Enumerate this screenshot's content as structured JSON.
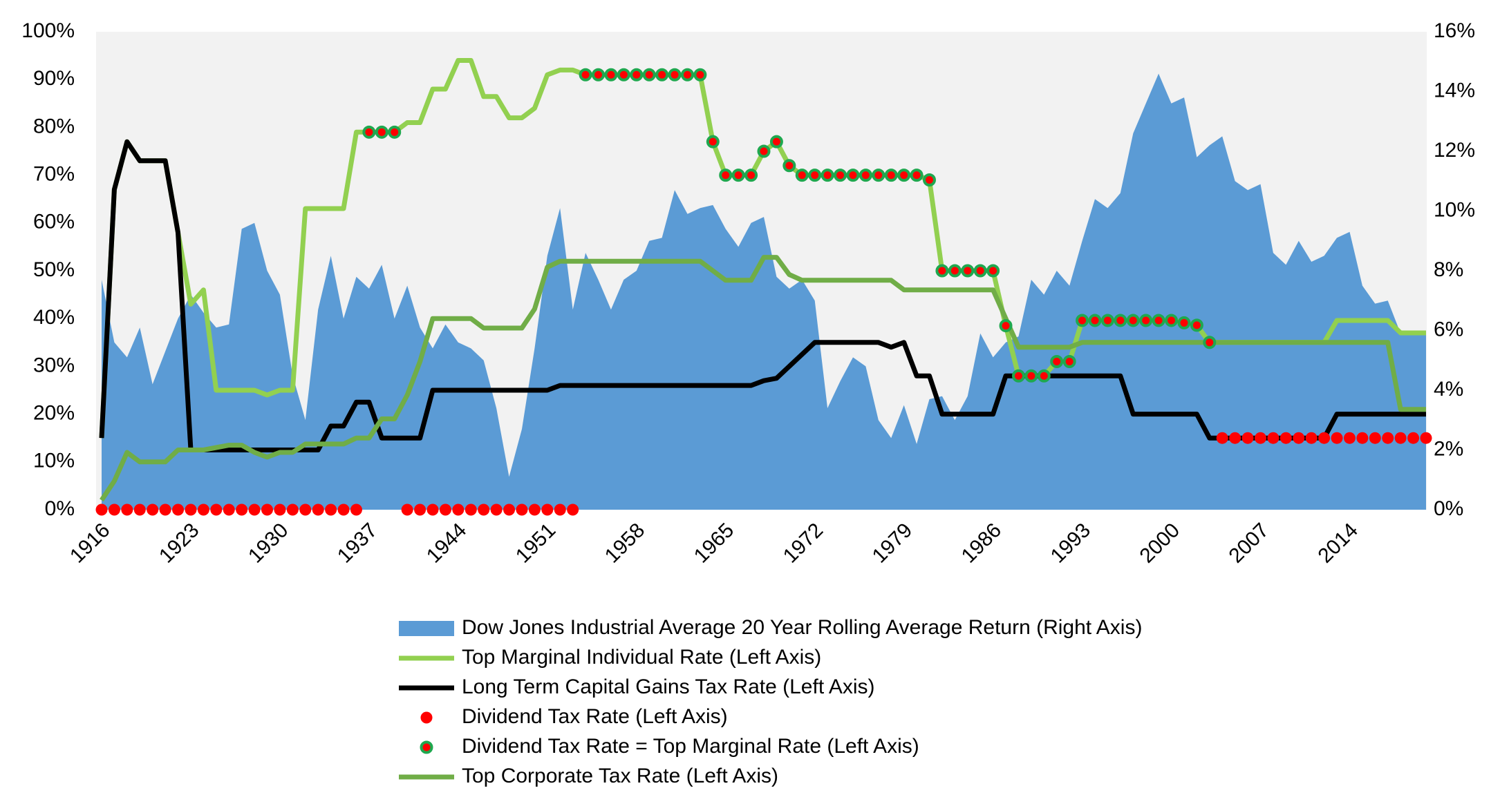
{
  "chart_data": {
    "type": "line",
    "x": [
      1916,
      1917,
      1918,
      1919,
      1920,
      1921,
      1922,
      1923,
      1924,
      1925,
      1926,
      1927,
      1928,
      1929,
      1930,
      1931,
      1932,
      1933,
      1934,
      1935,
      1936,
      1937,
      1938,
      1939,
      1940,
      1941,
      1942,
      1943,
      1944,
      1945,
      1946,
      1947,
      1948,
      1949,
      1950,
      1951,
      1952,
      1953,
      1954,
      1955,
      1956,
      1957,
      1958,
      1959,
      1960,
      1961,
      1962,
      1963,
      1964,
      1965,
      1966,
      1967,
      1968,
      1969,
      1970,
      1971,
      1972,
      1973,
      1974,
      1975,
      1976,
      1977,
      1978,
      1979,
      1980,
      1981,
      1982,
      1983,
      1984,
      1985,
      1986,
      1987,
      1988,
      1989,
      1990,
      1991,
      1992,
      1993,
      1994,
      1995,
      1996,
      1997,
      1998,
      1999,
      2000,
      2001,
      2002,
      2003,
      2004,
      2005,
      2006,
      2007,
      2008,
      2009,
      2010,
      2011,
      2012,
      2013,
      2014,
      2015,
      2016,
      2017,
      2018,
      2019,
      2020
    ],
    "xlim": [
      1916,
      2020
    ],
    "xticks": [
      1916,
      1923,
      1930,
      1937,
      1944,
      1951,
      1958,
      1965,
      1972,
      1979,
      1986,
      1993,
      2000,
      2007,
      2014
    ],
    "ylim": [
      0,
      100
    ],
    "yticks": [
      {
        "value": 0,
        "label": "0%"
      },
      {
        "value": 10,
        "label": "10%"
      },
      {
        "value": 20,
        "label": "20%"
      },
      {
        "value": 30,
        "label": "30%"
      },
      {
        "value": 40,
        "label": "40%"
      },
      {
        "value": 50,
        "label": "50%"
      },
      {
        "value": 60,
        "label": "60%"
      },
      {
        "value": 70,
        "label": "70%"
      },
      {
        "value": 80,
        "label": "80%"
      },
      {
        "value": 90,
        "label": "90%"
      },
      {
        "value": 100,
        "label": "100%"
      }
    ],
    "y2lim": [
      0,
      16
    ],
    "y2ticks": [
      {
        "value": 0,
        "label": "0%"
      },
      {
        "value": 2,
        "label": "2%"
      },
      {
        "value": 4,
        "label": "4%"
      },
      {
        "value": 6,
        "label": "6%"
      },
      {
        "value": 8,
        "label": "8%"
      },
      {
        "value": 10,
        "label": "10%"
      },
      {
        "value": 12,
        "label": "12%"
      },
      {
        "value": 14,
        "label": "14%"
      },
      {
        "value": 16,
        "label": "16%"
      }
    ],
    "grid": false,
    "legend": "bottom",
    "series": [
      {
        "name": "Dow Jones Industrial Average 20 Year Rolling Average Return (Right Axis)",
        "style": "area",
        "axis": "y2",
        "color": "#5b9bd5",
        "values": [
          7.7,
          5.6,
          5.1,
          6.1,
          4.2,
          5.3,
          6.4,
          7.2,
          6.6,
          6.1,
          6.2,
          9.4,
          9.6,
          8.0,
          7.2,
          4.5,
          3.0,
          6.7,
          8.5,
          6.4,
          7.8,
          7.4,
          8.2,
          6.4,
          7.5,
          6.1,
          5.4,
          6.2,
          5.6,
          5.4,
          5.0,
          3.4,
          1.1,
          2.7,
          5.4,
          8.5,
          10.1,
          6.7,
          8.6,
          7.7,
          6.7,
          7.7,
          8.0,
          9.0,
          9.1,
          10.7,
          9.9,
          10.1,
          10.2,
          9.4,
          8.8,
          9.6,
          9.8,
          7.8,
          7.4,
          7.7,
          7.0,
          3.4,
          4.3,
          5.1,
          4.8,
          3.0,
          2.4,
          3.5,
          2.2,
          3.7,
          3.8,
          3.0,
          3.8,
          5.9,
          5.1,
          5.6,
          5.8,
          7.7,
          7.2,
          8.0,
          7.5,
          9.0,
          10.4,
          10.1,
          10.6,
          12.6,
          13.6,
          14.6,
          13.6,
          13.8,
          11.8,
          12.2,
          12.5,
          11.0,
          10.7,
          10.9,
          8.6,
          8.2,
          9.0,
          8.3,
          8.5,
          9.1,
          9.3,
          7.5,
          6.9,
          7.0,
          5.9,
          5.9,
          5.9
        ]
      },
      {
        "name": "Top Marginal Individual Rate (Left Axis)",
        "style": "line",
        "color": "#92d050",
        "values": [
          15,
          67,
          77,
          73,
          73,
          73,
          58,
          43,
          46,
          25,
          25,
          25,
          25,
          24,
          25,
          25,
          63,
          63,
          63,
          63,
          79,
          79,
          79,
          79,
          81,
          81,
          88,
          88,
          94,
          94,
          86.45,
          86.45,
          82,
          82,
          84,
          91,
          92,
          92,
          91,
          91,
          91,
          91,
          91,
          91,
          91,
          91,
          91,
          91,
          77,
          70,
          70,
          70,
          75,
          77,
          72,
          70,
          70,
          70,
          70,
          70,
          70,
          70,
          70,
          70,
          70,
          69,
          50,
          50,
          50,
          50,
          50,
          38.5,
          28,
          28,
          28,
          31,
          31,
          39.6,
          39.6,
          39.6,
          39.6,
          39.6,
          39.6,
          39.6,
          39.6,
          39.1,
          38.6,
          35,
          35,
          35,
          35,
          35,
          35,
          35,
          35,
          35,
          35,
          39.6,
          39.6,
          39.6,
          39.6,
          39.6,
          37,
          37,
          37
        ]
      },
      {
        "name": "Long Term Capital Gains Tax Rate (Left Axis)",
        "style": "line",
        "color": "#000000",
        "values": [
          15,
          67,
          77,
          73,
          73,
          73,
          58,
          12.5,
          12.5,
          12.5,
          12.5,
          12.5,
          12.5,
          12.5,
          12.5,
          12.5,
          12.5,
          12.5,
          17.5,
          17.5,
          22.5,
          22.5,
          15,
          15,
          15,
          15,
          25,
          25,
          25,
          25,
          25,
          25,
          25,
          25,
          25,
          25,
          26,
          26,
          26,
          26,
          26,
          26,
          26,
          26,
          26,
          26,
          26,
          26,
          26,
          26,
          26,
          26,
          27,
          27.5,
          30,
          32.5,
          35,
          35,
          35,
          35,
          35,
          35,
          34,
          35,
          28,
          28,
          20,
          20,
          20,
          20,
          20,
          28,
          28,
          28,
          28,
          28,
          28,
          28,
          28,
          28,
          28,
          20,
          20,
          20,
          20,
          20,
          20,
          15,
          15,
          15,
          15,
          15,
          15,
          15,
          15,
          15,
          15,
          20,
          20,
          20,
          20,
          20,
          20,
          20,
          20
        ]
      },
      {
        "name": "Dividend Tax Rate (Left Axis)",
        "style": "marker",
        "color": "#ff0000",
        "values": [
          0,
          0,
          0,
          0,
          0,
          0,
          0,
          0,
          0,
          0,
          0,
          0,
          0,
          0,
          0,
          0,
          0,
          0,
          0,
          0,
          0,
          null,
          null,
          null,
          0,
          0,
          0,
          0,
          0,
          0,
          0,
          0,
          0,
          0,
          0,
          0,
          0,
          0,
          null,
          null,
          null,
          null,
          null,
          null,
          null,
          null,
          null,
          null,
          null,
          null,
          null,
          null,
          null,
          null,
          null,
          null,
          null,
          null,
          null,
          null,
          null,
          null,
          null,
          null,
          null,
          null,
          null,
          null,
          null,
          null,
          null,
          null,
          null,
          null,
          null,
          null,
          null,
          null,
          null,
          null,
          null,
          null,
          null,
          null,
          null,
          null,
          null,
          null,
          15,
          15,
          15,
          15,
          15,
          15,
          15,
          15,
          15,
          15,
          15,
          15,
          15,
          15,
          15,
          15,
          15
        ]
      },
      {
        "name": "Dividend Tax Rate = Top Marginal Rate (Left Axis)",
        "style": "ringed-marker",
        "color": "#ff0000",
        "edgecolor": "#1fa84f",
        "values": [
          null,
          null,
          null,
          null,
          null,
          null,
          null,
          null,
          null,
          null,
          null,
          null,
          null,
          null,
          null,
          null,
          null,
          null,
          null,
          null,
          null,
          79,
          79,
          79,
          null,
          null,
          null,
          null,
          null,
          null,
          null,
          null,
          null,
          null,
          null,
          null,
          null,
          null,
          91,
          91,
          91,
          91,
          91,
          91,
          91,
          91,
          91,
          91,
          77,
          70,
          70,
          70,
          75,
          77,
          72,
          70,
          70,
          70,
          70,
          70,
          70,
          70,
          70,
          70,
          70,
          69,
          50,
          50,
          50,
          50,
          50,
          38.5,
          28,
          28,
          28,
          31,
          31,
          39.6,
          39.6,
          39.6,
          39.6,
          39.6,
          39.6,
          39.6,
          39.6,
          39.1,
          38.6,
          35,
          null,
          null,
          null,
          null,
          null,
          null,
          null,
          null,
          null,
          null,
          null,
          null,
          null,
          null,
          null,
          null,
          null
        ]
      },
      {
        "name": "Top Corporate Tax Rate (Left Axis)",
        "style": "line",
        "color": "#70ad47",
        "values": [
          2,
          6,
          12,
          10,
          10,
          10,
          12.5,
          12.5,
          12.5,
          13,
          13.5,
          13.5,
          12,
          11,
          12,
          12,
          13.75,
          13.75,
          13.75,
          13.75,
          15,
          15,
          19,
          19,
          24,
          31,
          40,
          40,
          40,
          40,
          38,
          38,
          38,
          38,
          42,
          50.75,
          52,
          52,
          52,
          52,
          52,
          52,
          52,
          52,
          52,
          52,
          52,
          52,
          50,
          48,
          48,
          48,
          52.8,
          52.8,
          49.2,
          48,
          48,
          48,
          48,
          48,
          48,
          48,
          48,
          46,
          46,
          46,
          46,
          46,
          46,
          46,
          46,
          40,
          34,
          34,
          34,
          34,
          34,
          35,
          35,
          35,
          35,
          35,
          35,
          35,
          35,
          35,
          35,
          35,
          35,
          35,
          35,
          35,
          35,
          35,
          35,
          35,
          35,
          35,
          35,
          35,
          35,
          35,
          21,
          21,
          21
        ]
      }
    ]
  }
}
